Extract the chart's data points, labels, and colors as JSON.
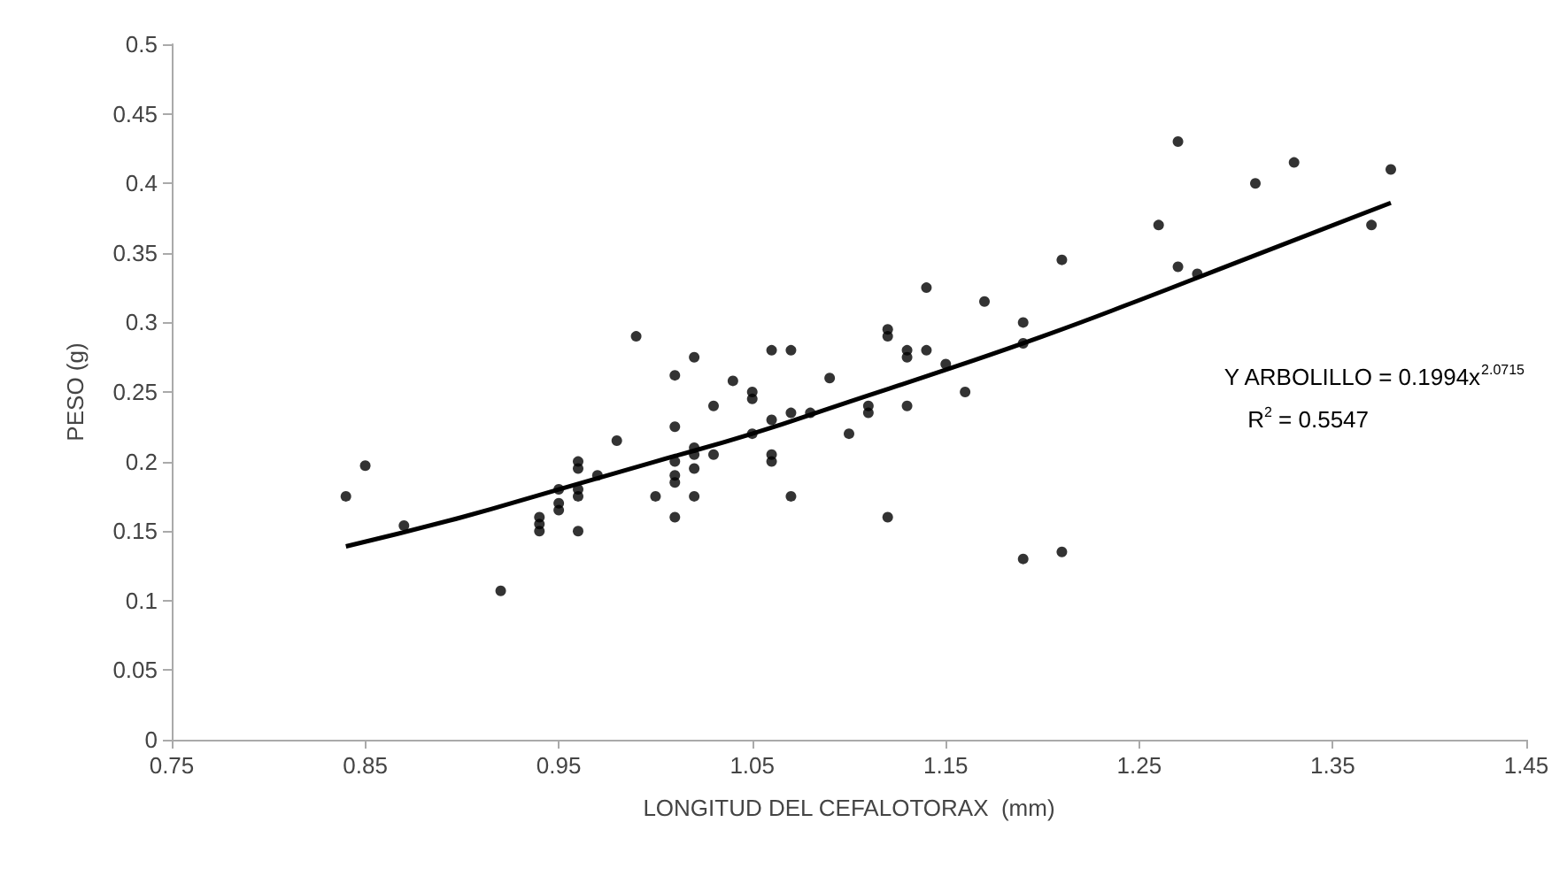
{
  "chart_data": {
    "type": "scatter",
    "xlabel": "LONGITUD DEL CEFALOTORAX  (mm)",
    "ylabel": "PESO (g)",
    "xlim": [
      0.75,
      1.45
    ],
    "xticks": [
      0.75,
      0.85,
      0.95,
      1.05,
      1.15,
      1.25,
      1.35,
      1.45
    ],
    "ylim": [
      0,
      0.5
    ],
    "yticks": [
      0,
      0.05,
      0.1,
      0.15,
      0.2,
      0.25,
      0.3,
      0.35,
      0.4,
      0.45,
      0.5
    ],
    "grid": false,
    "marker": "circle",
    "annotations": [
      "Y ARBOLILLO = 0.1994x$^{2.0715}$",
      "R$^{2}$ = 0.5547"
    ],
    "series": [
      {
        "color": "#000000",
        "x": [
          0.84,
          0.85,
          0.87,
          0.92,
          0.94,
          0.94,
          0.94,
          0.95,
          0.95,
          0.95,
          0.96,
          0.96,
          0.96,
          0.96,
          0.96,
          0.97,
          0.98,
          0.99,
          1.0,
          1.01,
          1.01,
          1.01,
          1.01,
          1.01,
          1.01,
          1.02,
          1.02,
          1.02,
          1.02,
          1.02,
          1.03,
          1.03,
          1.04,
          1.05,
          1.05,
          1.05,
          1.06,
          1.06,
          1.06,
          1.06,
          1.07,
          1.07,
          1.07,
          1.08,
          1.09,
          1.1,
          1.11,
          1.11,
          1.12,
          1.12,
          1.12,
          1.13,
          1.13,
          1.13,
          1.14,
          1.14,
          1.15,
          1.16,
          1.17,
          1.19,
          1.19,
          1.19,
          1.21,
          1.21,
          1.26,
          1.27,
          1.27,
          1.28,
          1.31,
          1.33,
          1.37,
          1.38
        ],
        "values": [
          0.175,
          0.197,
          0.154,
          0.107,
          0.15,
          0.155,
          0.16,
          0.165,
          0.17,
          0.18,
          0.15,
          0.175,
          0.18,
          0.2,
          0.195,
          0.19,
          0.215,
          0.29,
          0.175,
          0.16,
          0.185,
          0.19,
          0.2,
          0.225,
          0.262,
          0.175,
          0.195,
          0.205,
          0.275,
          0.21,
          0.24,
          0.205,
          0.258,
          0.25,
          0.245,
          0.22,
          0.2,
          0.205,
          0.23,
          0.28,
          0.175,
          0.28,
          0.235,
          0.235,
          0.26,
          0.22,
          0.24,
          0.235,
          0.16,
          0.29,
          0.295,
          0.275,
          0.28,
          0.24,
          0.325,
          0.28,
          0.27,
          0.25,
          0.315,
          0.13,
          0.3,
          0.285,
          0.345,
          0.135,
          0.37,
          0.43,
          0.34,
          0.335,
          0.4,
          0.415,
          0.37,
          0.41
        ]
      },
      {
        "type": "line",
        "marker": "none",
        "color": "#000000",
        "x": [
          0.84,
          0.9,
          0.95,
          1.0,
          1.05,
          1.1,
          1.15,
          1.2,
          1.25,
          1.3,
          1.38
        ],
        "values": [
          0.139,
          0.16,
          0.18,
          0.2,
          0.22,
          0.243,
          0.266,
          0.29,
          0.316,
          0.343,
          0.386
        ]
      }
    ]
  }
}
